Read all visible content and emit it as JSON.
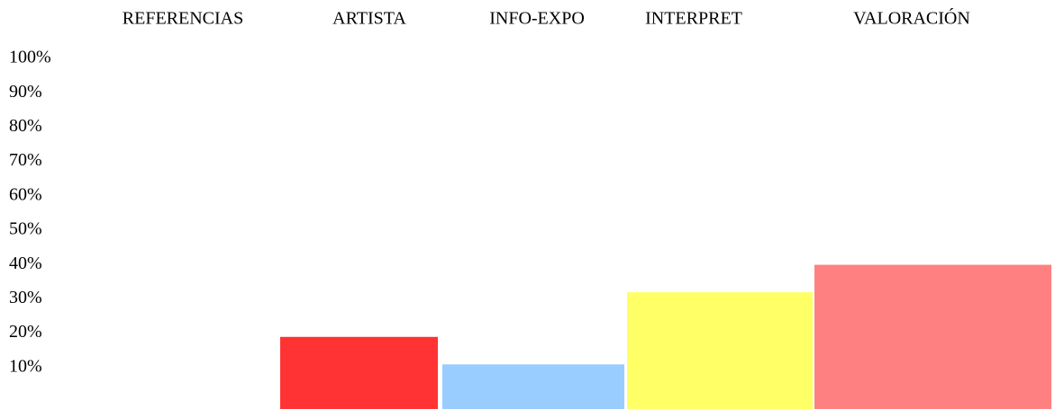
{
  "chart_data": {
    "type": "bar",
    "categories": [
      "REFERENCIAS",
      "ARTISTA",
      "INFO-EXPO",
      "INTERPRET",
      "VALORACIÓN"
    ],
    "values": [
      null,
      21,
      13,
      34,
      42
    ],
    "colors": [
      "#ff3333",
      "#ff3333",
      "#99ccff",
      "#ffff66",
      "#ff8080"
    ],
    "ylim": [
      0,
      100
    ],
    "yticks": [
      {
        "value": 10,
        "label": "10%"
      },
      {
        "value": 20,
        "label": "20%"
      },
      {
        "value": 30,
        "label": "30%"
      },
      {
        "value": 40,
        "label": "40%"
      },
      {
        "value": 50,
        "label": "50%"
      },
      {
        "value": 60,
        "label": "60%"
      },
      {
        "value": 70,
        "label": "70%"
      },
      {
        "value": 80,
        "label": "80%"
      },
      {
        "value": 90,
        "label": "90%"
      },
      {
        "value": 100,
        "label": "100%"
      }
    ]
  }
}
